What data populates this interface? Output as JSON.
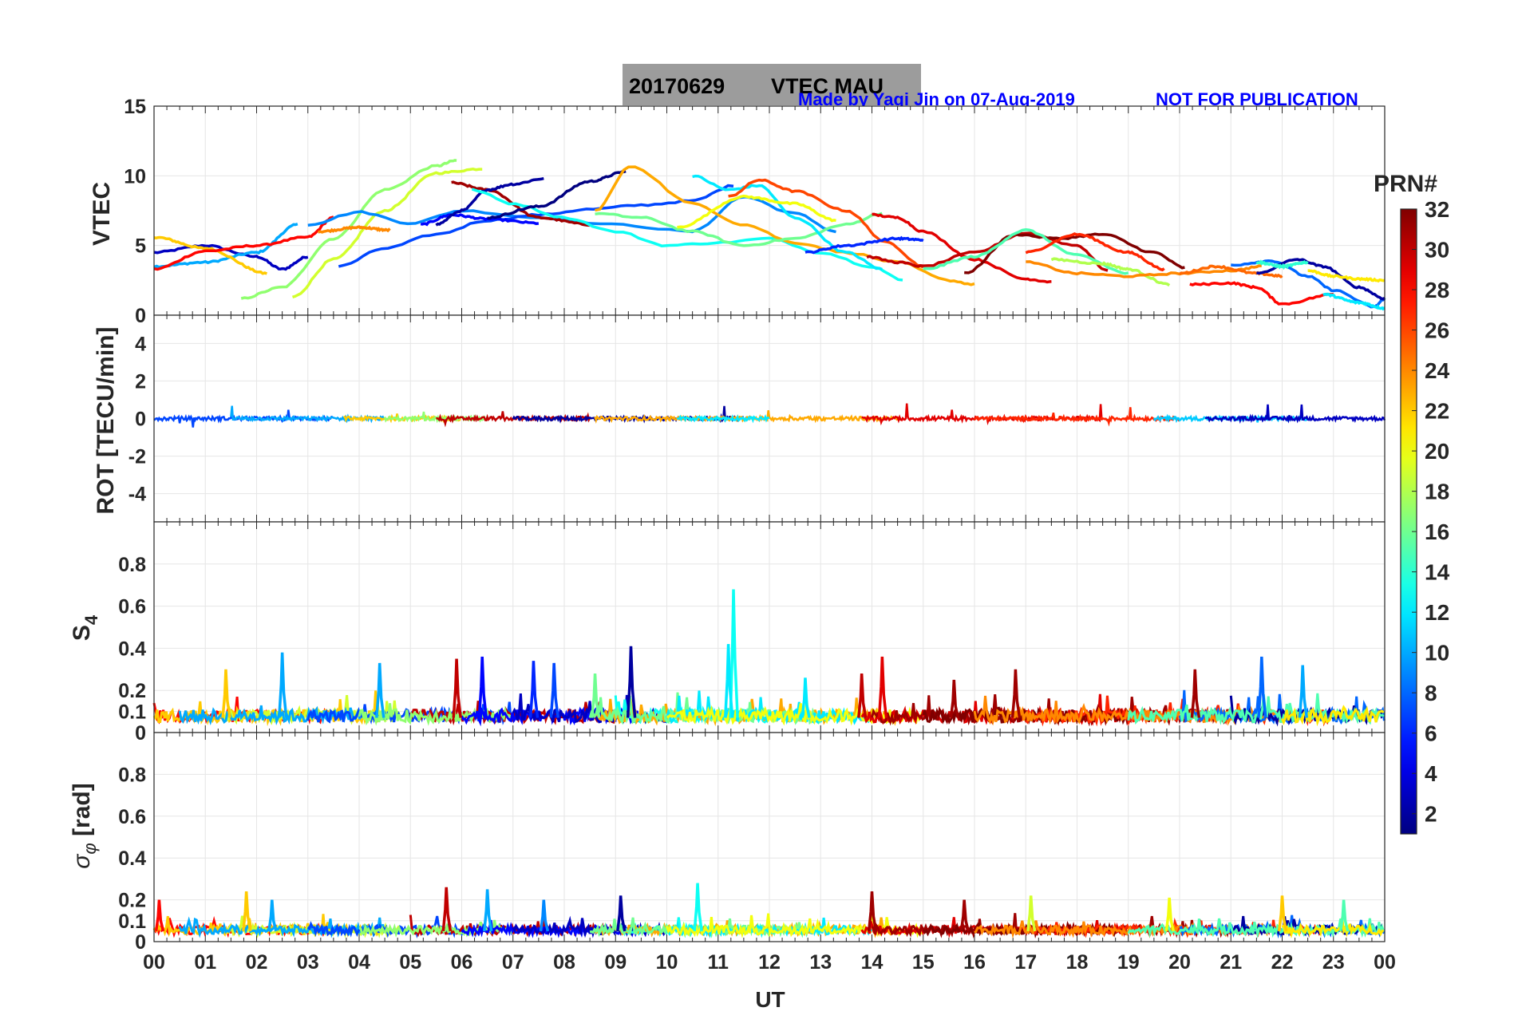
{
  "title": {
    "date": "20170629",
    "label": "VTEC  MAU",
    "box_color": "#9c9c9c"
  },
  "credit": {
    "author": "Made by Yaqi Jin on 07-Aug-2019",
    "notice": "NOT FOR PUBLICATION",
    "color": "#0000ff"
  },
  "colorbar": {
    "title": "PRN#",
    "min": 1,
    "max": 32,
    "ticks": [
      "2",
      "4",
      "6",
      "8",
      "10",
      "12",
      "14",
      "16",
      "18",
      "20",
      "22",
      "24",
      "26",
      "28",
      "30",
      "32"
    ],
    "colormap": "jet"
  },
  "xaxis": {
    "label": "UT",
    "ticks": [
      "00",
      "01",
      "02",
      "03",
      "04",
      "05",
      "06",
      "07",
      "08",
      "09",
      "10",
      "11",
      "12",
      "13",
      "14",
      "15",
      "16",
      "17",
      "18",
      "19",
      "20",
      "21",
      "22",
      "23",
      "00"
    ]
  },
  "chart_data": [
    {
      "type": "line",
      "id": "vtec",
      "ylabel": "VTEC",
      "xlim": [
        0,
        24
      ],
      "ylim": [
        0,
        15
      ],
      "yticks": [
        "0",
        "5",
        "10",
        "15"
      ],
      "grid": true,
      "series": [
        {
          "prn": 3,
          "x": [
            0,
            1,
            2,
            2.5,
            3
          ],
          "y": [
            4.5,
            5.0,
            4.2,
            3.3,
            4.2
          ]
        },
        {
          "prn": 10,
          "x": [
            0,
            1,
            2,
            2.8
          ],
          "y": [
            3.5,
            3.8,
            4.5,
            6.5
          ]
        },
        {
          "prn": 22,
          "x": [
            0,
            1,
            2.2
          ],
          "y": [
            5.6,
            4.8,
            3.0
          ]
        },
        {
          "prn": 28,
          "x": [
            0,
            1,
            2,
            3,
            3.5
          ],
          "y": [
            3.3,
            4.6,
            5.0,
            5.6,
            7.0
          ]
        },
        {
          "prn": 17,
          "x": [
            1.7,
            2.5,
            3.5,
            4.5,
            5.5,
            5.9
          ],
          "y": [
            1.2,
            2.0,
            5.5,
            9.0,
            10.7,
            11.1
          ]
        },
        {
          "prn": 19,
          "x": [
            2.7,
            3.5,
            4.5,
            5.5,
            6.4
          ],
          "y": [
            1.3,
            4.0,
            7.5,
            10.2,
            10.5
          ]
        },
        {
          "prn": 9,
          "x": [
            3.0,
            4.0,
            5.0,
            6.0,
            7.5,
            9.0,
            10.5,
            11.5,
            12.5,
            13.3
          ],
          "y": [
            6.5,
            7.4,
            6.6,
            7.5,
            7.0,
            6.5,
            6.0,
            8.5,
            7.3,
            6.0
          ]
        },
        {
          "prn": 7,
          "x": [
            3.6,
            4.5,
            5.5,
            6.5,
            7.5,
            8.5,
            9.5,
            10.5,
            11.3
          ],
          "y": [
            3.5,
            4.8,
            5.8,
            6.8,
            7.2,
            7.6,
            7.9,
            8.2,
            9.3
          ]
        },
        {
          "prn": 24,
          "x": [
            3.2,
            4.0,
            4.6
          ],
          "y": [
            6.0,
            6.3,
            6.1
          ]
        },
        {
          "prn": 5,
          "x": [
            5.2,
            5.8,
            6.5,
            7.5
          ],
          "y": [
            6.5,
            7.2,
            6.9,
            6.6
          ]
        },
        {
          "prn": 31,
          "x": [
            5.8,
            6.5,
            7.5,
            8.5
          ],
          "y": [
            9.5,
            9.0,
            7.0,
            6.5
          ]
        },
        {
          "prn": 2,
          "x": [
            5.5,
            6.0,
            6.5,
            7.0,
            7.6
          ],
          "y": [
            6.5,
            7.5,
            9.0,
            9.4,
            9.8
          ]
        },
        {
          "prn": 13,
          "x": [
            6.2,
            7.0,
            8.0,
            9.0,
            10.0,
            11.0,
            12.0,
            13.0,
            14.0,
            14.6
          ],
          "y": [
            9.0,
            8.0,
            7.0,
            6.0,
            5.0,
            5.2,
            5.5,
            4.5,
            3.5,
            2.5
          ]
        },
        {
          "prn": 1,
          "x": [
            6.5,
            7.5,
            8.5,
            9.2
          ],
          "y": [
            7.0,
            7.8,
            9.6,
            10.3
          ]
        },
        {
          "prn": 23,
          "x": [
            8.6,
            9.3,
            10.5,
            11.5,
            12.5,
            13.5,
            14.5,
            15.5,
            16.0
          ],
          "y": [
            7.5,
            10.7,
            8.0,
            6.5,
            5.2,
            4.5,
            3.8,
            2.5,
            2.2
          ]
        },
        {
          "prn": 16,
          "x": [
            8.6,
            9.5,
            10.5,
            11.5,
            12.5,
            13.5,
            14.2
          ],
          "y": [
            7.3,
            7.0,
            6.0,
            5.0,
            5.5,
            6.5,
            7.3
          ]
        },
        {
          "prn": 12,
          "x": [
            10.5,
            11.2,
            11.8,
            12.5,
            13.5,
            14.2
          ],
          "y": [
            10.0,
            9.0,
            9.3,
            7.0,
            4.5,
            3.3
          ]
        },
        {
          "prn": 20,
          "x": [
            10.2,
            11.5,
            12.5,
            13.3
          ],
          "y": [
            6.3,
            8.5,
            8.0,
            6.8
          ]
        },
        {
          "prn": 26,
          "x": [
            11.2,
            11.8,
            12.5,
            13.5,
            14.3,
            15.0
          ],
          "y": [
            8.5,
            9.7,
            8.9,
            7.5,
            5.2,
            3.5
          ]
        },
        {
          "prn": 6,
          "x": [
            12.7,
            13.5,
            14.5,
            15.0
          ],
          "y": [
            4.5,
            5.0,
            5.5,
            5.4
          ]
        },
        {
          "prn": 29,
          "x": [
            14.0,
            14.5,
            15.0,
            16.0,
            17.0,
            17.5
          ],
          "y": [
            7.2,
            7.0,
            6.0,
            4.0,
            2.6,
            2.4
          ]
        },
        {
          "prn": 30,
          "x": [
            13.9,
            14.5,
            15.0,
            16.0,
            17.0,
            18.0,
            18.6
          ],
          "y": [
            4.2,
            3.8,
            3.5,
            4.5,
            5.9,
            5.0,
            3.2
          ]
        },
        {
          "prn": 32,
          "x": [
            15.8,
            16.8,
            17.6,
            18.5,
            19.5,
            20.1
          ],
          "y": [
            3.0,
            5.8,
            5.5,
            5.8,
            4.5,
            3.4
          ]
        },
        {
          "prn": 15,
          "x": [
            15.0,
            16.0,
            17.0,
            18.0,
            19.0
          ],
          "y": [
            3.3,
            4.2,
            6.1,
            4.3,
            3.0
          ]
        },
        {
          "prn": 27,
          "x": [
            17.0,
            18.0,
            19.0,
            19.7
          ],
          "y": [
            4.5,
            5.8,
            4.5,
            3.3
          ]
        },
        {
          "prn": 18,
          "x": [
            17.5,
            18.5,
            19.0,
            19.8
          ],
          "y": [
            4.0,
            3.7,
            3.3,
            2.2
          ]
        },
        {
          "prn": 24,
          "x": [
            17.0,
            18.0,
            19.0,
            20.0,
            21.0,
            21.6
          ],
          "y": [
            3.8,
            3.0,
            2.8,
            3.0,
            3.2,
            3.5
          ]
        },
        {
          "prn": 25,
          "x": [
            20.0,
            20.7,
            21.5,
            22.0
          ],
          "y": [
            3.0,
            3.5,
            3.0,
            2.8
          ]
        },
        {
          "prn": 28,
          "x": [
            20.2,
            21.0,
            21.5,
            22.0,
            23.0
          ],
          "y": [
            2.2,
            2.3,
            2.0,
            0.8,
            1.5
          ]
        },
        {
          "prn": 8,
          "x": [
            21.0,
            21.8,
            22.5,
            23.0,
            23.8,
            24.0
          ],
          "y": [
            3.6,
            3.9,
            2.8,
            1.8,
            0.6,
            1.2
          ]
        },
        {
          "prn": 2,
          "x": [
            21.5,
            22.3,
            22.8,
            23.5,
            24.0
          ],
          "y": [
            3.0,
            4.0,
            3.5,
            2.0,
            1.2
          ]
        },
        {
          "prn": 21,
          "x": [
            22.5,
            23.0,
            23.5,
            24.0
          ],
          "y": [
            3.2,
            2.8,
            2.6,
            2.5
          ]
        },
        {
          "prn": 12,
          "x": [
            22.8,
            23.5,
            24.0
          ],
          "y": [
            1.5,
            0.9,
            0.5
          ]
        },
        {
          "prn": 14,
          "x": [
            21.5,
            22.0,
            22.5
          ],
          "y": [
            3.8,
            3.5,
            3.8
          ]
        }
      ]
    },
    {
      "type": "line",
      "id": "rot",
      "ylabel": "ROT [TECU/min]",
      "xlim": [
        0,
        24
      ],
      "ylim": [
        -5.5,
        5.5
      ],
      "yticks": [
        "-4",
        "-2",
        "0",
        "2",
        "4"
      ],
      "grid": true,
      "noise": {
        "baseline": 0,
        "typical_amplitude": 0.1,
        "max_spike": 0.7
      },
      "coverage": [
        {
          "prn": 7,
          "from": 0.0,
          "to": 3.5
        },
        {
          "prn": 10,
          "from": 1.5,
          "to": 4.5
        },
        {
          "prn": 22,
          "from": 3.7,
          "to": 6.0
        },
        {
          "prn": 17,
          "from": 4.5,
          "to": 6.5
        },
        {
          "prn": 30,
          "from": 5.5,
          "to": 8.5
        },
        {
          "prn": 2,
          "from": 7.0,
          "to": 11.5
        },
        {
          "prn": 23,
          "from": 8.6,
          "to": 14.5
        },
        {
          "prn": 12,
          "from": 10.2,
          "to": 12.0
        },
        {
          "prn": 29,
          "from": 13.8,
          "to": 18.5
        },
        {
          "prn": 27,
          "from": 16.0,
          "to": 20.0
        },
        {
          "prn": 11,
          "from": 19.5,
          "to": 22.5
        },
        {
          "prn": 3,
          "from": 20.5,
          "to": 24.0
        }
      ]
    },
    {
      "type": "line",
      "id": "s4",
      "ylabel": "S4",
      "xlim": [
        0,
        24
      ],
      "ylim": [
        0,
        1.0
      ],
      "yticks": [
        "0",
        "0.1",
        "0.2",
        "0.4",
        "0.6",
        "0.8"
      ],
      "grid": true,
      "noise": {
        "baseline": 0.07,
        "typical_amplitude": 0.06
      },
      "spikes": [
        {
          "x": 2.5,
          "y": 0.38,
          "prn": 10
        },
        {
          "x": 1.4,
          "y": 0.3,
          "prn": 22
        },
        {
          "x": 4.4,
          "y": 0.33,
          "prn": 10
        },
        {
          "x": 5.9,
          "y": 0.35,
          "prn": 30
        },
        {
          "x": 6.4,
          "y": 0.36,
          "prn": 5
        },
        {
          "x": 7.4,
          "y": 0.34,
          "prn": 6
        },
        {
          "x": 7.8,
          "y": 0.33,
          "prn": 7
        },
        {
          "x": 9.3,
          "y": 0.41,
          "prn": 2
        },
        {
          "x": 8.6,
          "y": 0.28,
          "prn": 16
        },
        {
          "x": 11.3,
          "y": 0.68,
          "prn": 13
        },
        {
          "x": 11.2,
          "y": 0.42,
          "prn": 12
        },
        {
          "x": 12.7,
          "y": 0.26,
          "prn": 12
        },
        {
          "x": 13.8,
          "y": 0.28,
          "prn": 30
        },
        {
          "x": 14.2,
          "y": 0.36,
          "prn": 29
        },
        {
          "x": 15.6,
          "y": 0.25,
          "prn": 31
        },
        {
          "x": 16.8,
          "y": 0.3,
          "prn": 31
        },
        {
          "x": 20.3,
          "y": 0.3,
          "prn": 31
        },
        {
          "x": 21.6,
          "y": 0.36,
          "prn": 8
        },
        {
          "x": 22.4,
          "y": 0.32,
          "prn": 10
        }
      ]
    },
    {
      "type": "line",
      "id": "sigma_phi",
      "ylabel": "σφ [rad]",
      "xlim": [
        0,
        24
      ],
      "ylim": [
        0,
        1.0
      ],
      "yticks": [
        "0",
        "0.1",
        "0.2",
        "0.4",
        "0.6",
        "0.8"
      ],
      "grid": true,
      "noise": {
        "baseline": 0.05,
        "typical_amplitude": 0.04
      },
      "spikes": [
        {
          "x": 0.1,
          "y": 0.2,
          "prn": 28
        },
        {
          "x": 1.8,
          "y": 0.24,
          "prn": 22
        },
        {
          "x": 2.3,
          "y": 0.2,
          "prn": 10
        },
        {
          "x": 5.7,
          "y": 0.26,
          "prn": 30
        },
        {
          "x": 6.5,
          "y": 0.25,
          "prn": 10
        },
        {
          "x": 7.6,
          "y": 0.2,
          "prn": 9
        },
        {
          "x": 9.1,
          "y": 0.22,
          "prn": 2
        },
        {
          "x": 10.6,
          "y": 0.28,
          "prn": 13
        },
        {
          "x": 14.0,
          "y": 0.24,
          "prn": 31
        },
        {
          "x": 15.8,
          "y": 0.2,
          "prn": 31
        },
        {
          "x": 17.1,
          "y": 0.22,
          "prn": 19
        },
        {
          "x": 19.8,
          "y": 0.21,
          "prn": 20
        },
        {
          "x": 22.0,
          "y": 0.22,
          "prn": 22
        },
        {
          "x": 23.2,
          "y": 0.2,
          "prn": 15
        }
      ]
    }
  ]
}
